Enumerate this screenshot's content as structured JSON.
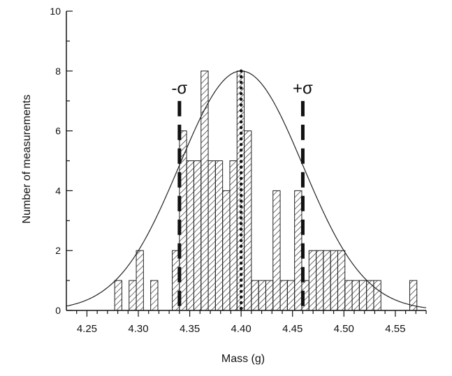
{
  "chart_data": {
    "type": "bar",
    "xlabel": "Mass (g)",
    "ylabel": "Number of measurements",
    "xlim": [
      4.23,
      4.58
    ],
    "ylim": [
      0,
      10
    ],
    "x_ticks": [
      4.25,
      4.3,
      4.35,
      4.4,
      4.45,
      4.5,
      4.55
    ],
    "x_tick_labels": [
      "4.25",
      "4.30",
      "4.35",
      "4.40",
      "4.45",
      "4.50",
      "4.55"
    ],
    "y_ticks": [
      0,
      2,
      4,
      6,
      8,
      10
    ],
    "y_tick_labels": [
      "0",
      "2",
      "4",
      "6",
      "8",
      "10"
    ],
    "bin_width": 0.007,
    "bin_starts": [
      4.277,
      4.291,
      4.298,
      4.312,
      4.333,
      4.34,
      4.347,
      4.354,
      4.361,
      4.368,
      4.375,
      4.382,
      4.389,
      4.396,
      4.403,
      4.41,
      4.417,
      4.424,
      4.431,
      4.438,
      4.445,
      4.452,
      4.459,
      4.466,
      4.473,
      4.48,
      4.487,
      4.494,
      4.501,
      4.508,
      4.515,
      4.522,
      4.529,
      4.564
    ],
    "values": [
      1,
      1,
      2,
      1,
      2,
      6,
      5,
      5,
      8,
      5,
      5,
      4,
      5,
      8,
      6,
      1,
      1,
      1,
      4,
      1,
      1,
      4,
      1,
      2,
      2,
      2,
      2,
      2,
      1,
      1,
      1,
      1,
      1,
      1
    ],
    "bar_color": "#222222",
    "bar_fill_pattern": "diagonal-hatch",
    "gaussian_fit": {
      "mean": 4.4,
      "sigma": 0.06,
      "peak": 8
    },
    "annotations": [
      {
        "label": "-σ",
        "x": 4.34,
        "style": "dashed"
      },
      {
        "label": "+σ",
        "x": 4.46,
        "style": "dashed"
      },
      {
        "label": "",
        "x": 4.4,
        "style": "dotted"
      }
    ],
    "colors": {
      "axis": "#111111",
      "curve": "#222222",
      "hatch": "#222222"
    }
  }
}
